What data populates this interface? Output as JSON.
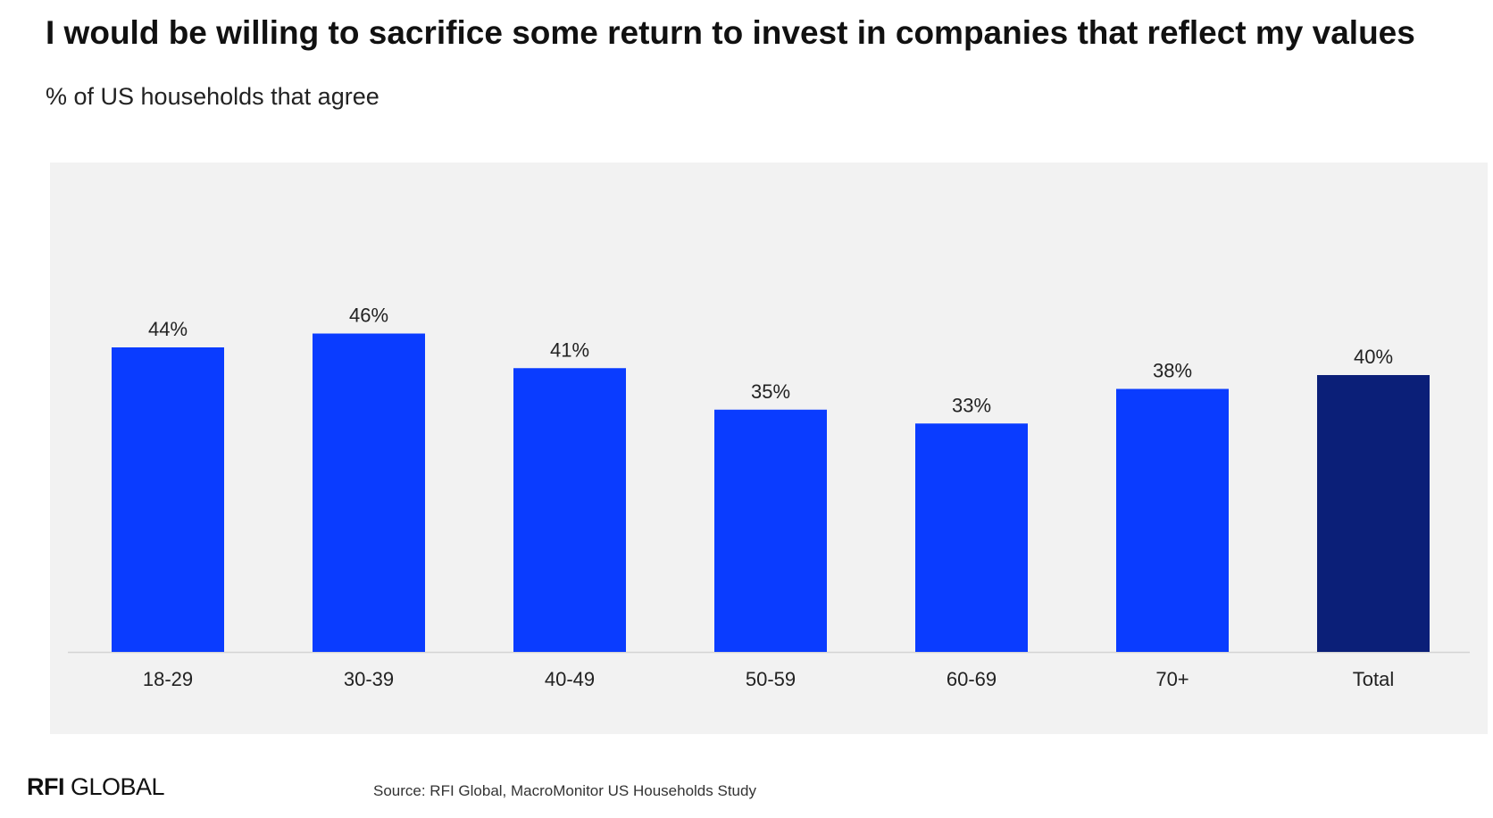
{
  "title": "I would be willing to sacrifice some return to invest in companies that reflect my values",
  "subtitle": "% of US households that agree",
  "source": "Source: RFI Global, MacroMonitor US Households Study",
  "logo": {
    "strong": "RFI",
    "light": " GLOBAL"
  },
  "colors": {
    "bar": "#0a3cff",
    "bar_highlight": "#0b1f78",
    "panel_background": "#f2f2f2",
    "baseline": "#d4d4d4",
    "text": "#222222"
  },
  "chart_data": {
    "type": "bar",
    "title": "I would be willing to sacrifice some return to invest in companies that reflect my values",
    "subtitle": "% of US households that agree",
    "xlabel": "",
    "ylabel": "",
    "categories": [
      "18-29",
      "30-39",
      "40-49",
      "50-59",
      "60-69",
      "70+",
      "Total"
    ],
    "values": [
      44,
      46,
      41,
      35,
      33,
      38,
      40
    ],
    "data_labels": [
      "44%",
      "46%",
      "41%",
      "35%",
      "33%",
      "38%",
      "40%"
    ],
    "highlight_category": "Total",
    "ylim": [
      0,
      70
    ],
    "grid": false,
    "legend": "none"
  }
}
